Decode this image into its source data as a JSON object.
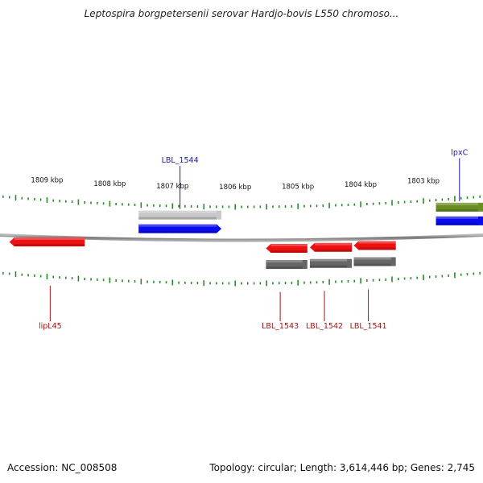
{
  "title": "Leptospira borgpetersenii serovar Hardjo-bovis L550 chromoso...",
  "accession": "Accession: NC_008508",
  "summary": "Topology: circular; Length: 3,614,446 bp; Genes: 2,745",
  "scale": {
    "unit": "kbp",
    "view_start_kbp": 1809.75,
    "view_end_kbp": 1802.05,
    "labels": [
      "1809 kbp",
      "1808 kbp",
      "1807 kbp",
      "1806 kbp",
      "1805 kbp",
      "1804 kbp",
      "1803 kbp"
    ],
    "label_positions_kbp": [
      1809,
      1808,
      1807,
      1806,
      1805,
      1804,
      1803
    ],
    "tick_color": "#2a8a2a"
  },
  "features": [
    {
      "name": "LBL_1544",
      "start_kbp": 1807.54,
      "end_kbp": 1806.22,
      "strand": "top",
      "row": "inner",
      "kind": "rna",
      "color": "#c8c8c8",
      "label_color": "#1a1aaa"
    },
    {
      "name": "LBL_1544",
      "start_kbp": 1807.54,
      "end_kbp": 1806.22,
      "strand": "top",
      "row": "outer",
      "kind": "gene",
      "color": "#0a0aee",
      "arrow": "right",
      "label": true,
      "label_color": "#1a1aaa"
    },
    {
      "name": "lpxC",
      "start_kbp": 1802.8,
      "end_kbp": 1802.05,
      "strand": "top",
      "row": "inner",
      "kind": "cds",
      "color": "#6b8e23",
      "label_color": "#1a1aaa"
    },
    {
      "name": "lpxC",
      "start_kbp": 1802.8,
      "end_kbp": 1802.05,
      "strand": "top",
      "row": "outer",
      "kind": "gene",
      "color": "#0a0aee",
      "label": true,
      "label_color": "#1a1aaa"
    },
    {
      "name": "lipL45",
      "start_kbp": 1809.6,
      "end_kbp": 1808.4,
      "strand": "bottom",
      "row": "outer",
      "kind": "gene",
      "color": "#ee1111",
      "arrow": "left",
      "label": true,
      "label_color": "#aa1111"
    },
    {
      "name": "LBL_1543",
      "start_kbp": 1805.51,
      "end_kbp": 1804.85,
      "strand": "bottom",
      "row": "outer",
      "kind": "gene",
      "color": "#ee1111",
      "arrow": "left",
      "label": true,
      "label_color": "#aa1111"
    },
    {
      "name": "LBL_1543",
      "start_kbp": 1805.51,
      "end_kbp": 1804.85,
      "strand": "bottom",
      "row": "inner",
      "kind": "cds",
      "color": "#666666"
    },
    {
      "name": "LBL_1542",
      "start_kbp": 1804.81,
      "end_kbp": 1804.14,
      "strand": "bottom",
      "row": "outer",
      "kind": "gene",
      "color": "#ee1111",
      "arrow": "left",
      "label": true,
      "label_color": "#aa1111"
    },
    {
      "name": "LBL_1542",
      "start_kbp": 1804.81,
      "end_kbp": 1804.14,
      "strand": "bottom",
      "row": "inner",
      "kind": "cds",
      "color": "#666666"
    },
    {
      "name": "LBL_1541",
      "start_kbp": 1804.11,
      "end_kbp": 1803.44,
      "strand": "bottom",
      "row": "outer",
      "kind": "gene",
      "color": "#ee1111",
      "arrow": "left",
      "label": true,
      "label_color": "#aa1111"
    },
    {
      "name": "LBL_1541",
      "start_kbp": 1804.11,
      "end_kbp": 1803.44,
      "strand": "bottom",
      "row": "inner",
      "kind": "cds",
      "color": "#666666"
    }
  ]
}
